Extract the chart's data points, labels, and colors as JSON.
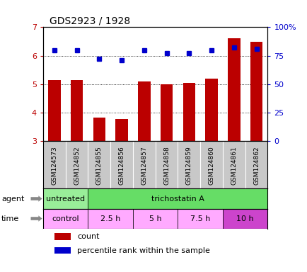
{
  "title": "GDS2923 / 1928",
  "samples": [
    "GSM124573",
    "GSM124852",
    "GSM124855",
    "GSM124856",
    "GSM124857",
    "GSM124858",
    "GSM124859",
    "GSM124860",
    "GSM124861",
    "GSM124862"
  ],
  "counts": [
    5.15,
    5.15,
    3.82,
    3.77,
    5.1,
    5.0,
    5.05,
    5.2,
    6.6,
    6.5
  ],
  "percentile": [
    80,
    80,
    72,
    71,
    80,
    77,
    77,
    80,
    82,
    81
  ],
  "ylim_left": [
    3,
    7
  ],
  "ylim_right": [
    0,
    100
  ],
  "yticks_left": [
    3,
    4,
    5,
    6,
    7
  ],
  "yticks_right": [
    0,
    25,
    50,
    75,
    100
  ],
  "ytick_labels_right": [
    "0",
    "25",
    "50",
    "75",
    "100%"
  ],
  "bar_color": "#bb0000",
  "point_color": "#0000cc",
  "label_row_bg": "#c8c8c8",
  "label_divider_color": "#ffffff",
  "agent_untreated_color": "#99ee99",
  "agent_tsa_color": "#66dd66",
  "time_light_color": "#ffaaff",
  "time_dark_color": "#cc44cc",
  "title_fontsize": 10,
  "tick_fontsize": 8,
  "sample_fontsize": 6.5,
  "row_label_fontsize": 8,
  "legend_fontsize": 8
}
